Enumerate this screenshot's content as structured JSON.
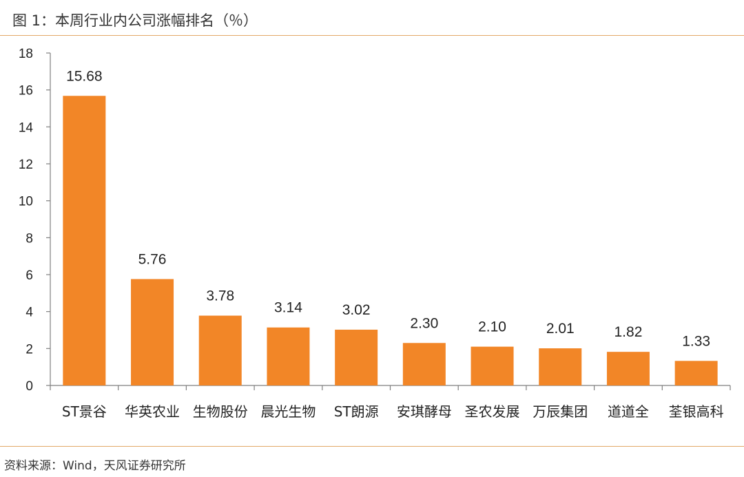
{
  "header": {
    "title": "图 1：本周行业内公司涨幅排名（％）"
  },
  "footer": {
    "source": "资料来源：Wind，天风证券研究所"
  },
  "colors": {
    "bar": "#f28627",
    "rule": "#e2a766",
    "axis": "#7f7f7f"
  },
  "chart_data": {
    "type": "bar",
    "title": "",
    "xlabel": "",
    "ylabel": "",
    "ylim": [
      0,
      18
    ],
    "yticks": [
      0,
      2,
      4,
      6,
      8,
      10,
      12,
      14,
      16,
      18
    ],
    "grid": false,
    "legend": "none",
    "categories": [
      "ST景谷",
      "华英农业",
      "生物股份",
      "晨光生物",
      "ST朗源",
      "安琪酵母",
      "圣农发展",
      "万辰集团",
      "道道全",
      "荃银高科"
    ],
    "values": [
      15.68,
      5.76,
      3.78,
      3.14,
      3.02,
      2.3,
      2.1,
      2.01,
      1.82,
      1.33
    ],
    "value_labels": [
      "15.68",
      "5.76",
      "3.78",
      "3.14",
      "3.02",
      "2.30",
      "2.10",
      "2.01",
      "1.82",
      "1.33"
    ]
  }
}
